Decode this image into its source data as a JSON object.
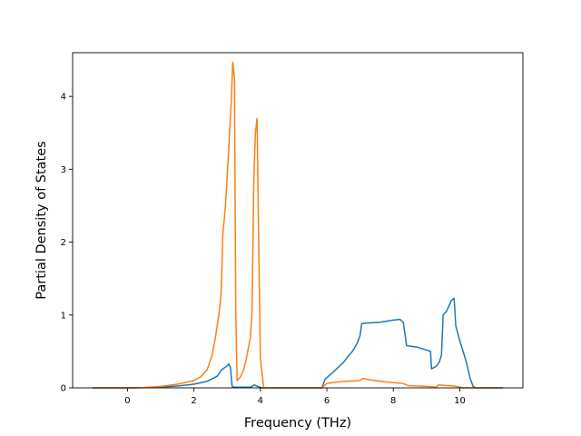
{
  "chart_data": {
    "type": "line",
    "title": "",
    "xlabel": "Frequency (THz)",
    "ylabel": "Partial Density of States",
    "xlim": [
      -1.65,
      11.9
    ],
    "ylim": [
      0,
      4.6
    ],
    "xticks": [
      0,
      2,
      4,
      6,
      8,
      10
    ],
    "yticks": [
      0,
      1,
      2,
      3,
      4
    ],
    "grid": false,
    "legend": "none",
    "series": [
      {
        "color": "#1f77b4",
        "points": [
          [
            -1.05,
            0
          ],
          [
            0,
            0
          ],
          [
            0.5,
            0.003
          ],
          [
            1.0,
            0.01
          ],
          [
            1.5,
            0.025
          ],
          [
            2.0,
            0.05
          ],
          [
            2.4,
            0.09
          ],
          [
            2.7,
            0.16
          ],
          [
            2.82,
            0.24
          ],
          [
            2.9,
            0.27
          ],
          [
            3.0,
            0.3
          ],
          [
            3.05,
            0.33
          ],
          [
            3.1,
            0.28
          ],
          [
            3.15,
            0.02
          ],
          [
            3.2,
            0.01
          ],
          [
            3.7,
            0.01
          ],
          [
            3.82,
            0.04
          ],
          [
            3.92,
            0.02
          ],
          [
            4.05,
            0
          ],
          [
            5.85,
            0
          ],
          [
            5.95,
            0.12
          ],
          [
            6.2,
            0.22
          ],
          [
            6.5,
            0.35
          ],
          [
            6.8,
            0.52
          ],
          [
            6.92,
            0.62
          ],
          [
            7.0,
            0.72
          ],
          [
            7.05,
            0.88
          ],
          [
            7.2,
            0.89
          ],
          [
            7.6,
            0.9
          ],
          [
            8.0,
            0.93
          ],
          [
            8.2,
            0.94
          ],
          [
            8.3,
            0.9
          ],
          [
            8.4,
            0.58
          ],
          [
            8.7,
            0.56
          ],
          [
            9.0,
            0.52
          ],
          [
            9.12,
            0.5
          ],
          [
            9.15,
            0.26
          ],
          [
            9.3,
            0.3
          ],
          [
            9.38,
            0.35
          ],
          [
            9.45,
            0.45
          ],
          [
            9.5,
            1.0
          ],
          [
            9.6,
            1.05
          ],
          [
            9.75,
            1.2
          ],
          [
            9.83,
            1.23
          ],
          [
            9.88,
            0.85
          ],
          [
            10.0,
            0.65
          ],
          [
            10.1,
            0.5
          ],
          [
            10.2,
            0.35
          ],
          [
            10.3,
            0.15
          ],
          [
            10.4,
            0.02
          ],
          [
            10.5,
            0
          ],
          [
            11.3,
            0
          ]
        ]
      },
      {
        "color": "#ff7f0e",
        "points": [
          [
            -1.05,
            0
          ],
          [
            0,
            0
          ],
          [
            0.5,
            0.005
          ],
          [
            1.0,
            0.02
          ],
          [
            1.5,
            0.05
          ],
          [
            2.0,
            0.1
          ],
          [
            2.2,
            0.15
          ],
          [
            2.4,
            0.25
          ],
          [
            2.55,
            0.45
          ],
          [
            2.65,
            0.7
          ],
          [
            2.75,
            1.0
          ],
          [
            2.82,
            1.3
          ],
          [
            2.87,
            2.1
          ],
          [
            2.95,
            2.5
          ],
          [
            3.05,
            3.3
          ],
          [
            3.12,
            3.9
          ],
          [
            3.17,
            4.47
          ],
          [
            3.22,
            4.25
          ],
          [
            3.26,
            1.0
          ],
          [
            3.3,
            0.1
          ],
          [
            3.4,
            0.15
          ],
          [
            3.5,
            0.25
          ],
          [
            3.6,
            0.45
          ],
          [
            3.7,
            0.7
          ],
          [
            3.75,
            1.05
          ],
          [
            3.8,
            2.8
          ],
          [
            3.85,
            3.5
          ],
          [
            3.9,
            3.7
          ],
          [
            3.95,
            2.0
          ],
          [
            4.0,
            0.4
          ],
          [
            4.1,
            0
          ],
          [
            5.85,
            0
          ],
          [
            6.0,
            0.06
          ],
          [
            6.3,
            0.08
          ],
          [
            6.6,
            0.09
          ],
          [
            7.0,
            0.1
          ],
          [
            7.08,
            0.13
          ],
          [
            7.3,
            0.11
          ],
          [
            7.8,
            0.08
          ],
          [
            8.3,
            0.06
          ],
          [
            8.45,
            0.03
          ],
          [
            9.0,
            0.02
          ],
          [
            9.3,
            0.01
          ],
          [
            9.35,
            0.04
          ],
          [
            9.7,
            0.03
          ],
          [
            9.9,
            0.02
          ],
          [
            10.1,
            0
          ],
          [
            11.3,
            0
          ]
        ]
      }
    ]
  }
}
